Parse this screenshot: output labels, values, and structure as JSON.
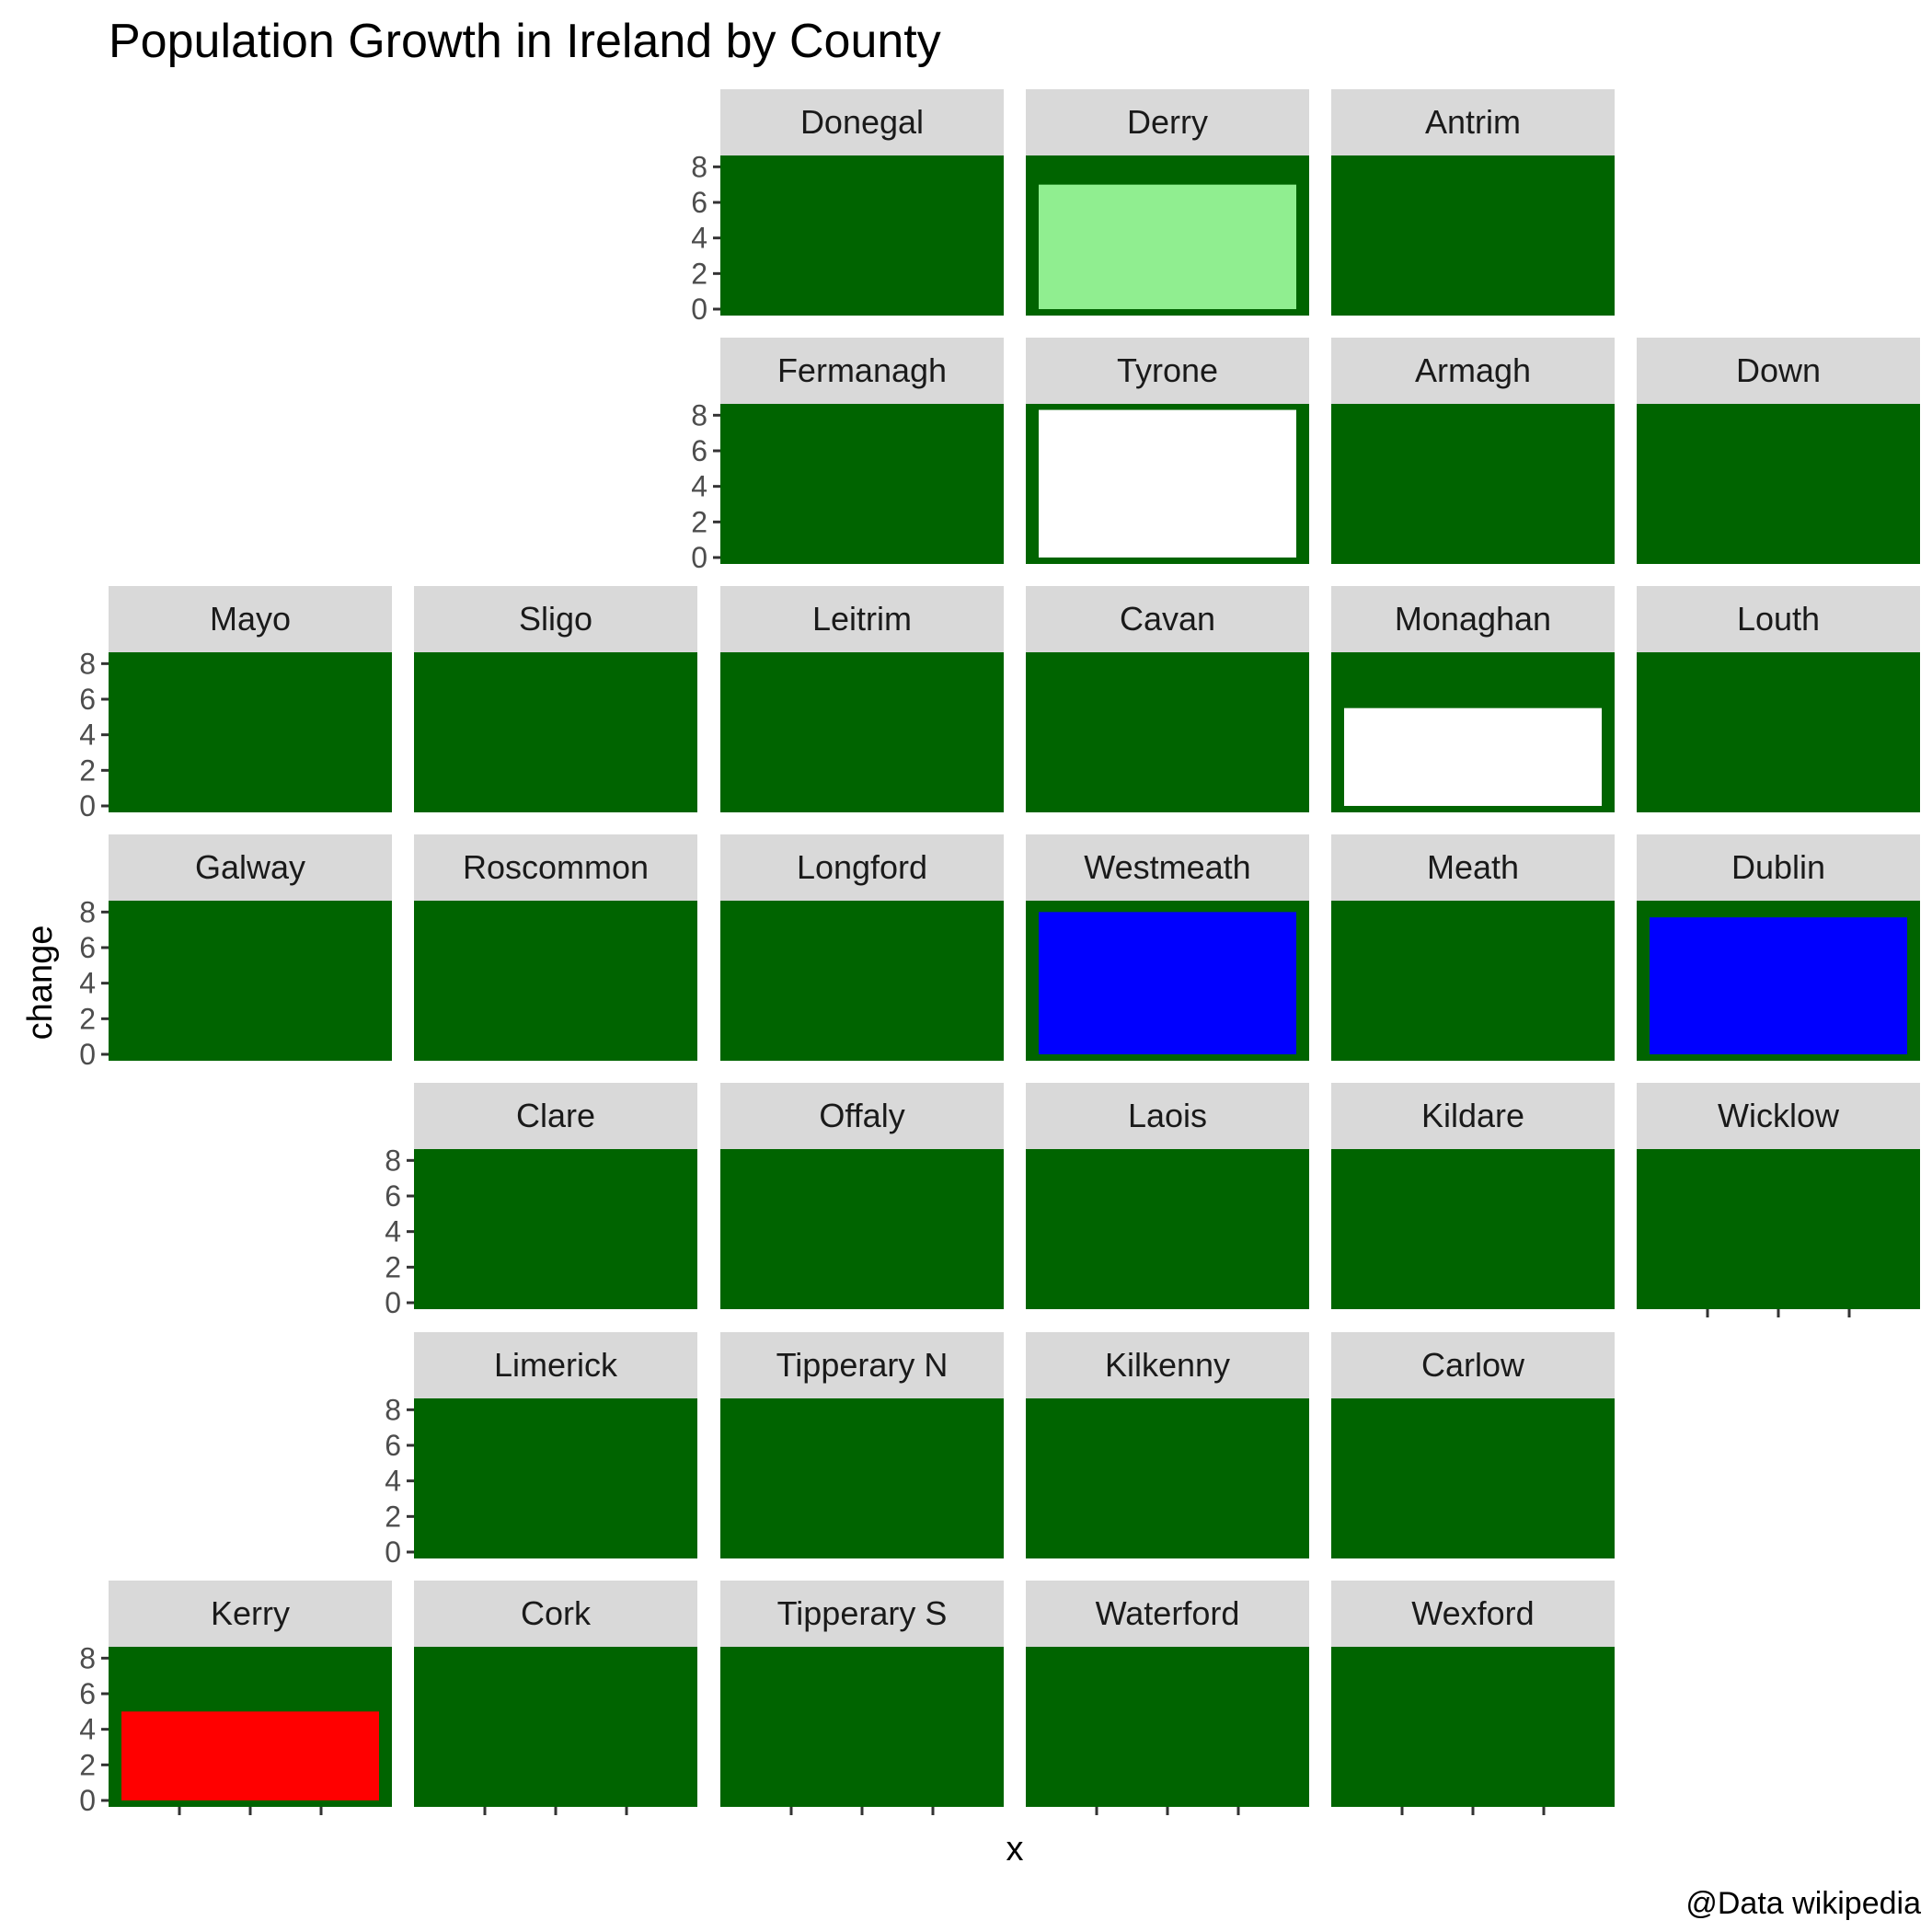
{
  "chart_data": {
    "type": "bar",
    "title": "Population Growth in Ireland by County",
    "xlabel": "x",
    "ylabel": "change",
    "caption": "@Data wikipedia",
    "y_ticks": [
      "0",
      "2",
      "4",
      "6",
      "8"
    ],
    "ylim": [
      0,
      9
    ],
    "panel_background": "#006400",
    "strip_background": "#d9d9d9",
    "grid": false,
    "counties": [
      {
        "name": "Donegal",
        "row": 0,
        "col": 2,
        "value": null
      },
      {
        "name": "Derry",
        "row": 0,
        "col": 3,
        "value": 7.0,
        "fill": "#90ee90"
      },
      {
        "name": "Antrim",
        "row": 0,
        "col": 4,
        "value": null
      },
      {
        "name": "Fermanagh",
        "row": 1,
        "col": 2,
        "value": null
      },
      {
        "name": "Tyrone",
        "row": 1,
        "col": 3,
        "value": 8.3,
        "fill": "#ffffff"
      },
      {
        "name": "Armagh",
        "row": 1,
        "col": 4,
        "value": null
      },
      {
        "name": "Down",
        "row": 1,
        "col": 5,
        "value": null
      },
      {
        "name": "Mayo",
        "row": 2,
        "col": 0,
        "value": null
      },
      {
        "name": "Sligo",
        "row": 2,
        "col": 1,
        "value": null
      },
      {
        "name": "Leitrim",
        "row": 2,
        "col": 2,
        "value": null
      },
      {
        "name": "Cavan",
        "row": 2,
        "col": 3,
        "value": null
      },
      {
        "name": "Monaghan",
        "row": 2,
        "col": 4,
        "value": 5.5,
        "fill": "#ffffff"
      },
      {
        "name": "Louth",
        "row": 2,
        "col": 5,
        "value": null
      },
      {
        "name": "Galway",
        "row": 3,
        "col": 0,
        "value": null
      },
      {
        "name": "Roscommon",
        "row": 3,
        "col": 1,
        "value": null
      },
      {
        "name": "Longford",
        "row": 3,
        "col": 2,
        "value": null
      },
      {
        "name": "Westmeath",
        "row": 3,
        "col": 3,
        "value": 8.0,
        "fill": "#0000ff"
      },
      {
        "name": "Meath",
        "row": 3,
        "col": 4,
        "value": null
      },
      {
        "name": "Dublin",
        "row": 3,
        "col": 5,
        "value": 7.7,
        "fill": "#0000ff"
      },
      {
        "name": "Clare",
        "row": 4,
        "col": 1,
        "value": null
      },
      {
        "name": "Offaly",
        "row": 4,
        "col": 2,
        "value": null
      },
      {
        "name": "Laois",
        "row": 4,
        "col": 3,
        "value": null
      },
      {
        "name": "Kildare",
        "row": 4,
        "col": 4,
        "value": null
      },
      {
        "name": "Wicklow",
        "row": 4,
        "col": 5,
        "value": null
      },
      {
        "name": "Limerick",
        "row": 5,
        "col": 1,
        "value": null
      },
      {
        "name": "Tipperary N",
        "row": 5,
        "col": 2,
        "value": null
      },
      {
        "name": "Kilkenny",
        "row": 5,
        "col": 3,
        "value": null
      },
      {
        "name": "Carlow",
        "row": 5,
        "col": 4,
        "value": null
      },
      {
        "name": "Kerry",
        "row": 6,
        "col": 0,
        "value": 5.0,
        "fill": "#ff0000"
      },
      {
        "name": "Cork",
        "row": 6,
        "col": 1,
        "value": null
      },
      {
        "name": "Tipperary S",
        "row": 6,
        "col": 2,
        "value": null
      },
      {
        "name": "Waterford",
        "row": 6,
        "col": 3,
        "value": null
      },
      {
        "name": "Wexford",
        "row": 6,
        "col": 4,
        "value": null
      }
    ]
  }
}
